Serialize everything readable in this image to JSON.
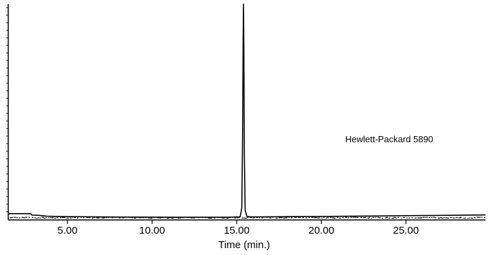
{
  "chart_data": {
    "type": "line",
    "title": "",
    "instrument_annotation": "Hewlett-Packard 5890",
    "xlabel": "Time (min.)",
    "ylabel": "",
    "xlim": [
      1.5,
      29.7
    ],
    "ylim": [
      0,
      100
    ],
    "x_ticks": [
      5,
      10,
      15,
      20,
      25
    ],
    "x_tick_labels": [
      "5.00",
      "10.00",
      "15.00",
      "20.00",
      "25.00"
    ],
    "y_tick_labels_shown": false,
    "grid": false,
    "legend": "none",
    "series": [
      {
        "color": "#000000",
        "x": [
          1.5,
          2.0,
          2.5,
          2.85,
          2.9,
          3.3,
          3.8,
          5.0,
          8.0,
          12.0,
          14.5,
          15.2,
          15.3,
          15.35,
          15.38,
          15.4,
          15.42,
          15.45,
          15.5,
          15.6,
          15.8,
          16.5,
          18.0,
          20.0,
          23.0,
          26.0,
          29.7
        ],
        "y": [
          2.3,
          2.3,
          2.3,
          2.2,
          1.6,
          1.5,
          1.1,
          0.9,
          0.7,
          0.6,
          0.6,
          0.8,
          5.0,
          40.0,
          85.0,
          100.0,
          80.0,
          30.0,
          4.0,
          1.0,
          0.8,
          0.8,
          0.9,
          1.0,
          1.2,
          1.4,
          1.7
        ]
      }
    ]
  }
}
